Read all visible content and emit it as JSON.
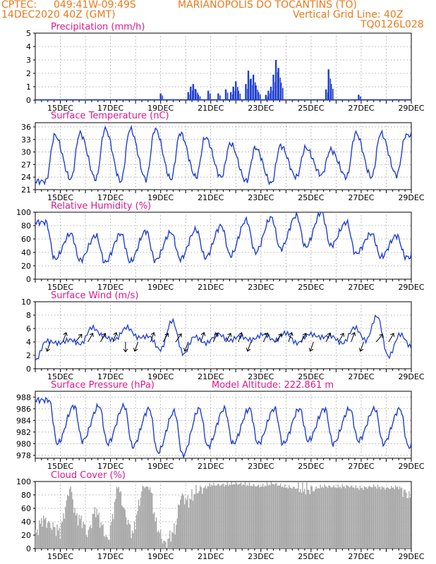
{
  "header": {
    "line1_left": "CPTEC:",
    "coords": "049:41W-09:49S",
    "station": "MARIANOPOLIS DO TOCANTINS (TO)",
    "date": "14DEC2020 40Z (GMT)",
    "grid_note": "Vertical Grid Line: 40Z",
    "code": "TQ0126L028"
  },
  "colors": {
    "header": "#e87a1c",
    "title": "#e0188c",
    "line": "#1f3fcf",
    "cloud": "#a8a8a8"
  },
  "chart_data": [
    {
      "type": "bar",
      "title": "Precipitation (mm/h)",
      "ylim": [
        0,
        5
      ],
      "yticks": [
        0,
        1,
        2,
        3,
        4,
        5
      ],
      "xticks": [
        "15DEC",
        "17DEC",
        "19DEC",
        "21DEC",
        "23DEC",
        "25DEC",
        "27DEC",
        "29DEC"
      ],
      "bars": [
        {
          "day": 19.0,
          "value": 0.5
        },
        {
          "day": 20.1,
          "value": 0.6
        },
        {
          "day": 20.2,
          "value": 1.0
        },
        {
          "day": 20.3,
          "value": 1.2
        },
        {
          "day": 20.4,
          "value": 0.8
        },
        {
          "day": 20.5,
          "value": 0.4
        },
        {
          "day": 20.9,
          "value": 0.7
        },
        {
          "day": 21.3,
          "value": 0.5
        },
        {
          "day": 21.6,
          "value": 0.8
        },
        {
          "day": 21.8,
          "value": 0.6
        },
        {
          "day": 21.9,
          "value": 1.0
        },
        {
          "day": 22.0,
          "value": 1.4
        },
        {
          "day": 22.1,
          "value": 0.7
        },
        {
          "day": 22.4,
          "value": 1.2
        },
        {
          "day": 22.5,
          "value": 2.2
        },
        {
          "day": 22.6,
          "value": 1.6
        },
        {
          "day": 22.7,
          "value": 1.9
        },
        {
          "day": 22.8,
          "value": 1.1
        },
        {
          "day": 22.9,
          "value": 0.6
        },
        {
          "day": 23.2,
          "value": 0.4
        },
        {
          "day": 23.3,
          "value": 0.7
        },
        {
          "day": 23.4,
          "value": 1.0
        },
        {
          "day": 23.5,
          "value": 1.9
        },
        {
          "day": 23.6,
          "value": 3.0
        },
        {
          "day": 23.7,
          "value": 2.4
        },
        {
          "day": 23.8,
          "value": 1.3
        },
        {
          "day": 25.6,
          "value": 0.8
        },
        {
          "day": 25.7,
          "value": 2.3
        },
        {
          "day": 25.8,
          "value": 1.2
        },
        {
          "day": 26.9,
          "value": 0.4
        }
      ]
    },
    {
      "type": "line",
      "title": "Surface Temperature (nC)",
      "ylim": [
        21,
        37
      ],
      "yticks": [
        21,
        24,
        27,
        30,
        33,
        36
      ],
      "xticks": [
        "15DEC",
        "17DEC",
        "19DEC",
        "21DEC",
        "23DEC",
        "25DEC",
        "27DEC",
        "29DEC"
      ],
      "daily_min": [
        23,
        23.5,
        23.5,
        23,
        23.5,
        23.5,
        24,
        24,
        23,
        22.5,
        24,
        24.5,
        24,
        24,
        24.5
      ],
      "daily_max": [
        34,
        34.5,
        35.5,
        35.5,
        35.5,
        34.5,
        33.5,
        32,
        31,
        31.5,
        31,
        30.5,
        34.5,
        34.5,
        34
      ]
    },
    {
      "type": "line",
      "title": "Relative Humidity (%)",
      "ylim": [
        0,
        100
      ],
      "yticks": [
        0,
        20,
        40,
        60,
        80,
        100
      ],
      "xticks": [
        "15DEC",
        "17DEC",
        "19DEC",
        "21DEC",
        "23DEC",
        "25DEC",
        "27DEC",
        "29DEC"
      ],
      "daily_min": [
        30,
        28,
        25,
        26,
        28,
        30,
        32,
        35,
        40,
        45,
        48,
        50,
        38,
        33,
        33
      ],
      "daily_max": [
        85,
        68,
        65,
        68,
        72,
        70,
        74,
        80,
        88,
        92,
        95,
        100,
        85,
        68,
        65
      ]
    },
    {
      "type": "line",
      "title": "Surface Wind (m/s)",
      "ylim": [
        0,
        10
      ],
      "yticks": [
        0,
        2,
        4,
        6,
        8,
        10
      ],
      "xticks": [
        "15DEC",
        "17DEC",
        "19DEC",
        "21DEC",
        "23DEC",
        "25DEC",
        "27DEC",
        "29DEC"
      ],
      "speed": [
        1,
        4,
        4,
        4.5,
        3.5,
        6,
        5,
        4.5,
        6,
        4.5,
        5,
        3,
        7,
        2,
        5,
        4,
        5,
        4,
        5,
        4.5,
        5,
        4,
        5.5,
        4,
        5,
        4.5,
        5,
        4,
        6,
        4,
        8,
        2,
        5,
        3
      ]
    },
    {
      "type": "line",
      "title": "Surface Pressure (hPa)",
      "annotation": "Model Altitude: 222.861 m",
      "ylim": [
        977.5,
        989
      ],
      "yticks": [
        978,
        980,
        982,
        984,
        986,
        988
      ],
      "xticks": [
        "15DEC",
        "17DEC",
        "19DEC",
        "21DEC",
        "23DEC",
        "25DEC",
        "27DEC",
        "29DEC"
      ],
      "daily_max": [
        987.5,
        986.5,
        986.5,
        986.5,
        986,
        985.5,
        986,
        986,
        986,
        986,
        986,
        986,
        986,
        986,
        986
      ],
      "daily_min": [
        980,
        980.5,
        980,
        979.5,
        978.5,
        978,
        979.5,
        980,
        980,
        980,
        980.5,
        980,
        980.5,
        980,
        979.5
      ]
    },
    {
      "type": "bar",
      "title": "Cloud Cover (%)",
      "ylim": [
        0,
        100
      ],
      "yticks": [
        0,
        20,
        40,
        60,
        80,
        100
      ],
      "xticks": [
        "15DEC",
        "17DEC",
        "19DEC",
        "21DEC",
        "23DEC",
        "25DEC",
        "27DEC",
        "29DEC"
      ],
      "profile": [
        {
          "day": 14.0,
          "value": 20
        },
        {
          "day": 14.3,
          "value": 45
        },
        {
          "day": 14.6,
          "value": 35
        },
        {
          "day": 15.0,
          "value": 25
        },
        {
          "day": 15.2,
          "value": 60
        },
        {
          "day": 15.4,
          "value": 95
        },
        {
          "day": 15.6,
          "value": 50
        },
        {
          "day": 15.9,
          "value": 40
        },
        {
          "day": 16.1,
          "value": 20
        },
        {
          "day": 16.4,
          "value": 60
        },
        {
          "day": 16.6,
          "value": 40
        },
        {
          "day": 16.9,
          "value": 10
        },
        {
          "day": 17.1,
          "value": 50
        },
        {
          "day": 17.3,
          "value": 95
        },
        {
          "day": 17.6,
          "value": 50
        },
        {
          "day": 17.9,
          "value": 20
        },
        {
          "day": 18.1,
          "value": 60
        },
        {
          "day": 18.3,
          "value": 93
        },
        {
          "day": 18.6,
          "value": 90
        },
        {
          "day": 18.8,
          "value": 40
        },
        {
          "day": 19.0,
          "value": 20
        },
        {
          "day": 19.2,
          "value": 5
        },
        {
          "day": 19.4,
          "value": 20
        },
        {
          "day": 19.6,
          "value": 30
        },
        {
          "day": 19.8,
          "value": 80
        },
        {
          "day": 20.1,
          "value": 70
        },
        {
          "day": 20.4,
          "value": 85
        },
        {
          "day": 20.7,
          "value": 90
        },
        {
          "day": 21.0,
          "value": 95
        },
        {
          "day": 21.5,
          "value": 95
        },
        {
          "day": 22.0,
          "value": 97
        },
        {
          "day": 22.5,
          "value": 95
        },
        {
          "day": 23.0,
          "value": 93
        },
        {
          "day": 23.5,
          "value": 97
        },
        {
          "day": 24.0,
          "value": 92
        },
        {
          "day": 24.5,
          "value": 90
        },
        {
          "day": 25.0,
          "value": 88
        },
        {
          "day": 25.5,
          "value": 93
        },
        {
          "day": 26.0,
          "value": 92
        },
        {
          "day": 26.5,
          "value": 93
        },
        {
          "day": 27.0,
          "value": 90
        },
        {
          "day": 27.5,
          "value": 93
        },
        {
          "day": 28.0,
          "value": 90
        },
        {
          "day": 28.5,
          "value": 92
        },
        {
          "day": 29.0,
          "value": 75
        }
      ]
    }
  ]
}
